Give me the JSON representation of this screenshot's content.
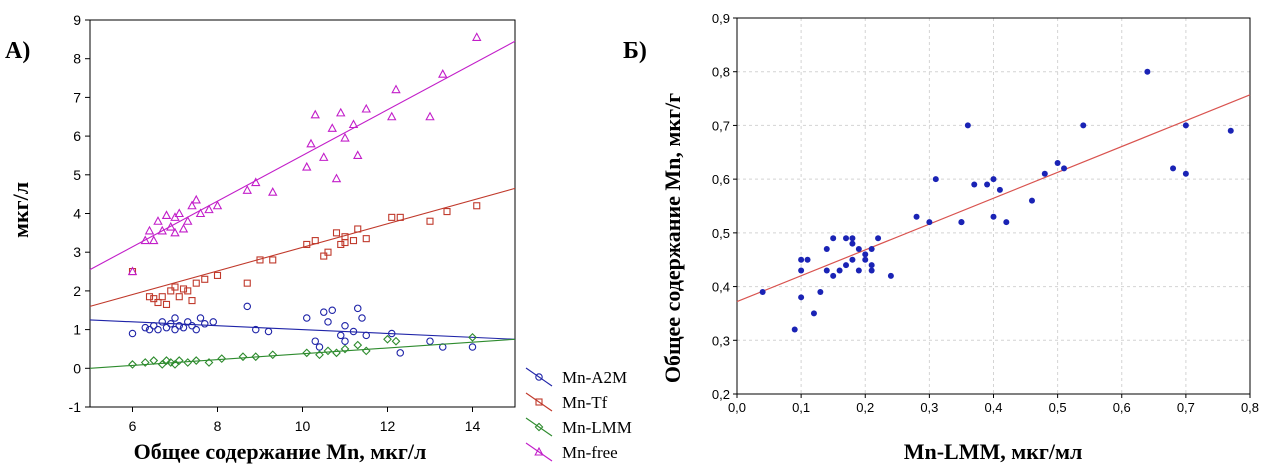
{
  "chart_data": [
    {
      "type": "scatter",
      "panel_label": "А)",
      "xlabel": "Общее содержание Mn, мкг/л",
      "ylabel": "мкг/л",
      "xlim": [
        5,
        15
      ],
      "ylim": [
        -1,
        9
      ],
      "x_ticks": [
        "6",
        "8",
        "10",
        "12",
        "14"
      ],
      "y_ticks": [
        "-1",
        "0",
        "1",
        "2",
        "3",
        "4",
        "5",
        "6",
        "7",
        "8",
        "9"
      ],
      "grid": false,
      "legend_position": "bottom-right, outside plot",
      "series": [
        {
          "name": "Mn-A2M",
          "color": "#1f24a8",
          "marker": "circle",
          "fit": [
            [
              5,
              1.25
            ],
            [
              15,
              0.75
            ]
          ],
          "points": [
            [
              6,
              0.9
            ],
            [
              6.3,
              1.05
            ],
            [
              6.4,
              1.0
            ],
            [
              6.5,
              1.1
            ],
            [
              6.6,
              1.0
            ],
            [
              6.7,
              1.2
            ],
            [
              6.8,
              1.05
            ],
            [
              6.9,
              1.15
            ],
            [
              7.0,
              1.3
            ],
            [
              7.0,
              1.0
            ],
            [
              7.1,
              1.1
            ],
            [
              7.2,
              1.05
            ],
            [
              7.3,
              1.2
            ],
            [
              7.4,
              1.1
            ],
            [
              7.5,
              1.0
            ],
            [
              7.6,
              1.3
            ],
            [
              7.7,
              1.15
            ],
            [
              7.9,
              1.2
            ],
            [
              8.7,
              1.6
            ],
            [
              8.9,
              1.0
            ],
            [
              9.2,
              0.95
            ],
            [
              10.1,
              1.3
            ],
            [
              10.3,
              0.7
            ],
            [
              10.4,
              0.55
            ],
            [
              10.5,
              1.45
            ],
            [
              10.6,
              1.2
            ],
            [
              10.7,
              1.5
            ],
            [
              10.9,
              0.85
            ],
            [
              11.0,
              1.1
            ],
            [
              11.0,
              0.7
            ],
            [
              11.2,
              0.95
            ],
            [
              11.3,
              1.55
            ],
            [
              11.4,
              1.3
            ],
            [
              11.5,
              0.85
            ],
            [
              12.1,
              0.9
            ],
            [
              12.3,
              0.4
            ],
            [
              13.0,
              0.7
            ],
            [
              13.3,
              0.55
            ],
            [
              14.0,
              0.55
            ]
          ]
        },
        {
          "name": "Mn-Tf",
          "color": "#c0392b",
          "marker": "square",
          "fit": [
            [
              5,
              1.6
            ],
            [
              15,
              4.65
            ]
          ],
          "points": [
            [
              6,
              2.5
            ],
            [
              6.4,
              1.85
            ],
            [
              6.5,
              1.8
            ],
            [
              6.6,
              1.7
            ],
            [
              6.7,
              1.85
            ],
            [
              6.8,
              1.65
            ],
            [
              6.9,
              2.0
            ],
            [
              7.0,
              2.1
            ],
            [
              7.1,
              1.85
            ],
            [
              7.2,
              2.05
            ],
            [
              7.3,
              2.0
            ],
            [
              7.4,
              1.75
            ],
            [
              7.5,
              2.2
            ],
            [
              7.7,
              2.3
            ],
            [
              8.0,
              2.4
            ],
            [
              8.7,
              2.2
            ],
            [
              9.0,
              2.8
            ],
            [
              9.3,
              2.8
            ],
            [
              10.1,
              3.2
            ],
            [
              10.3,
              3.3
            ],
            [
              10.5,
              2.9
            ],
            [
              10.6,
              3.0
            ],
            [
              10.8,
              3.5
            ],
            [
              10.9,
              3.2
            ],
            [
              11.0,
              3.4
            ],
            [
              11.0,
              3.25
            ],
            [
              11.2,
              3.3
            ],
            [
              11.3,
              3.6
            ],
            [
              11.5,
              3.35
            ],
            [
              12.1,
              3.9
            ],
            [
              12.3,
              3.9
            ],
            [
              13.0,
              3.8
            ],
            [
              13.4,
              4.05
            ],
            [
              14.1,
              4.2
            ]
          ]
        },
        {
          "name": "Mn-LMM",
          "color": "#2e8b2e",
          "marker": "diamond",
          "fit": [
            [
              5,
              0.0
            ],
            [
              15,
              0.75
            ]
          ],
          "points": [
            [
              6,
              0.1
            ],
            [
              6.3,
              0.15
            ],
            [
              6.5,
              0.2
            ],
            [
              6.7,
              0.1
            ],
            [
              6.8,
              0.2
            ],
            [
              6.9,
              0.15
            ],
            [
              7.0,
              0.1
            ],
            [
              7.1,
              0.2
            ],
            [
              7.3,
              0.15
            ],
            [
              7.5,
              0.2
            ],
            [
              7.8,
              0.15
            ],
            [
              8.1,
              0.25
            ],
            [
              8.6,
              0.3
            ],
            [
              8.9,
              0.3
            ],
            [
              9.3,
              0.35
            ],
            [
              10.1,
              0.4
            ],
            [
              10.4,
              0.35
            ],
            [
              10.6,
              0.45
            ],
            [
              10.8,
              0.4
            ],
            [
              11.0,
              0.5
            ],
            [
              11.3,
              0.6
            ],
            [
              11.5,
              0.45
            ],
            [
              12.0,
              0.75
            ],
            [
              12.2,
              0.7
            ],
            [
              14.0,
              0.8
            ]
          ]
        },
        {
          "name": "Mn-free",
          "color": "#c21ec9",
          "marker": "triangle",
          "fit": [
            [
              5,
              2.55
            ],
            [
              15,
              8.45
            ]
          ],
          "points": [
            [
              6,
              2.5
            ],
            [
              6.3,
              3.3
            ],
            [
              6.4,
              3.55
            ],
            [
              6.5,
              3.3
            ],
            [
              6.6,
              3.8
            ],
            [
              6.7,
              3.55
            ],
            [
              6.8,
              3.95
            ],
            [
              6.9,
              3.65
            ],
            [
              7.0,
              3.9
            ],
            [
              7.0,
              3.5
            ],
            [
              7.1,
              4.0
            ],
            [
              7.2,
              3.6
            ],
            [
              7.3,
              3.8
            ],
            [
              7.4,
              4.2
            ],
            [
              7.5,
              4.35
            ],
            [
              7.6,
              4.0
            ],
            [
              7.8,
              4.1
            ],
            [
              8.0,
              4.2
            ],
            [
              8.7,
              4.6
            ],
            [
              8.9,
              4.8
            ],
            [
              9.3,
              4.55
            ],
            [
              10.1,
              5.2
            ],
            [
              10.2,
              5.8
            ],
            [
              10.3,
              6.55
            ],
            [
              10.5,
              5.45
            ],
            [
              10.7,
              6.2
            ],
            [
              10.8,
              4.9
            ],
            [
              10.9,
              6.6
            ],
            [
              11.0,
              5.95
            ],
            [
              11.2,
              6.3
            ],
            [
              11.3,
              5.5
            ],
            [
              11.5,
              6.7
            ],
            [
              12.1,
              6.5
            ],
            [
              12.2,
              7.2
            ],
            [
              13.0,
              6.5
            ],
            [
              13.3,
              7.6
            ],
            [
              14.1,
              8.55
            ]
          ]
        }
      ]
    },
    {
      "type": "scatter",
      "panel_label": "Б)",
      "xlabel": "Mn-LMM, мкг/мл",
      "ylabel": "Общее содержание Mn, мкг/г",
      "xlim": [
        0.0,
        0.8
      ],
      "ylim": [
        0.2,
        0.9
      ],
      "x_ticks": [
        "0,0",
        "0,1",
        "0,2",
        "0,3",
        "0,4",
        "0,5",
        "0,6",
        "0,7",
        "0,8"
      ],
      "y_ticks": [
        "0,2",
        "0,3",
        "0,4",
        "0,5",
        "0,6",
        "0,7",
        "0,8",
        "0,9"
      ],
      "grid": true,
      "series": [
        {
          "color": "#1a23b5",
          "marker": "dot",
          "fit_color": "#d9534f",
          "fit": [
            [
              0.0,
              0.372
            ],
            [
              0.8,
              0.757
            ]
          ],
          "points": [
            [
              0.04,
              0.39
            ],
            [
              0.09,
              0.32
            ],
            [
              0.1,
              0.38
            ],
            [
              0.1,
              0.43
            ],
            [
              0.1,
              0.45
            ],
            [
              0.11,
              0.45
            ],
            [
              0.12,
              0.35
            ],
            [
              0.13,
              0.39
            ],
            [
              0.14,
              0.43
            ],
            [
              0.14,
              0.47
            ],
            [
              0.15,
              0.42
            ],
            [
              0.15,
              0.49
            ],
            [
              0.16,
              0.43
            ],
            [
              0.17,
              0.44
            ],
            [
              0.17,
              0.49
            ],
            [
              0.18,
              0.45
            ],
            [
              0.18,
              0.48
            ],
            [
              0.18,
              0.49
            ],
            [
              0.19,
              0.43
            ],
            [
              0.19,
              0.47
            ],
            [
              0.2,
              0.45
            ],
            [
              0.2,
              0.46
            ],
            [
              0.21,
              0.43
            ],
            [
              0.21,
              0.44
            ],
            [
              0.21,
              0.47
            ],
            [
              0.22,
              0.49
            ],
            [
              0.24,
              0.42
            ],
            [
              0.28,
              0.53
            ],
            [
              0.3,
              0.52
            ],
            [
              0.31,
              0.6
            ],
            [
              0.35,
              0.52
            ],
            [
              0.35,
              0.52
            ],
            [
              0.36,
              0.7
            ],
            [
              0.37,
              0.59
            ],
            [
              0.39,
              0.59
            ],
            [
              0.4,
              0.6
            ],
            [
              0.4,
              0.53
            ],
            [
              0.41,
              0.58
            ],
            [
              0.42,
              0.52
            ],
            [
              0.46,
              0.56
            ],
            [
              0.48,
              0.61
            ],
            [
              0.5,
              0.63
            ],
            [
              0.51,
              0.62
            ],
            [
              0.54,
              0.7
            ],
            [
              0.64,
              0.8
            ],
            [
              0.68,
              0.62
            ],
            [
              0.7,
              0.7
            ],
            [
              0.7,
              0.61
            ],
            [
              0.77,
              0.69
            ]
          ]
        }
      ]
    }
  ]
}
